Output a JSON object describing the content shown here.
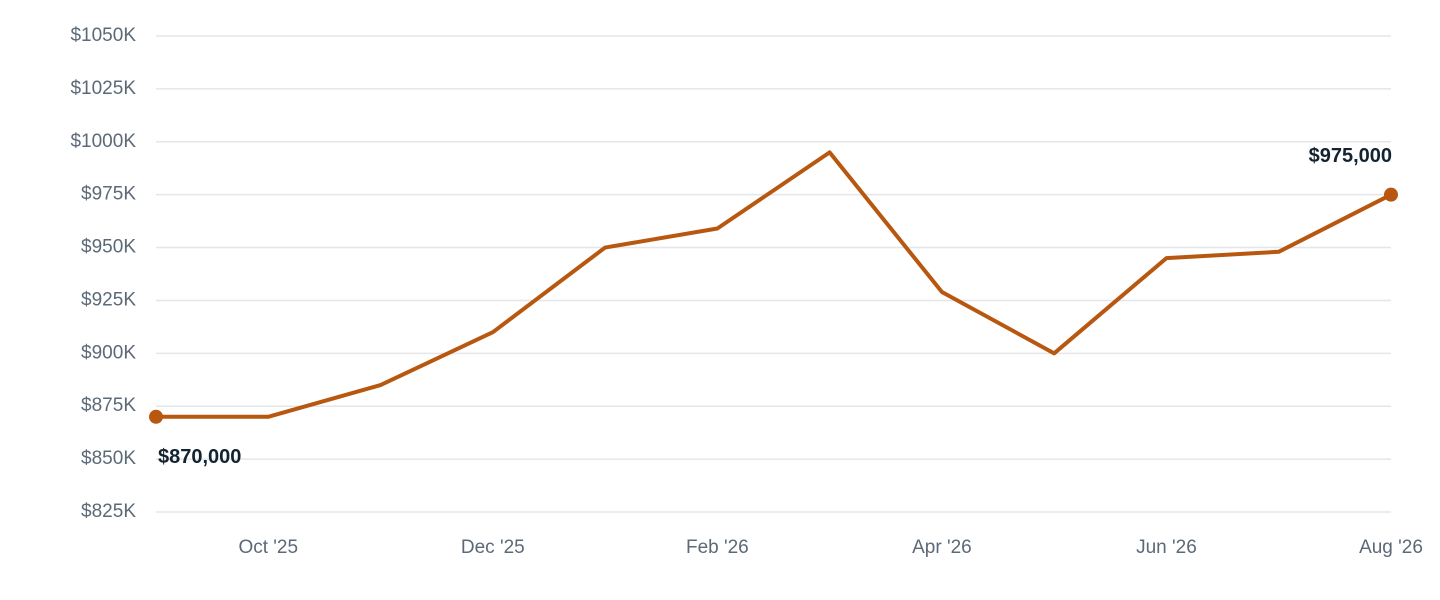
{
  "chart_data": {
    "type": "line",
    "categories": [
      null,
      "Oct '25",
      null,
      "Dec '25",
      null,
      "Feb '26",
      null,
      "Apr '26",
      null,
      "Jun '26",
      null,
      "Aug '26"
    ],
    "values": [
      870000,
      870000,
      885000,
      910000,
      950000,
      959000,
      995000,
      929000,
      900000,
      945000,
      948000,
      975000
    ],
    "value_labels": [
      "$870,000",
      null,
      null,
      null,
      null,
      null,
      null,
      null,
      null,
      null,
      null,
      "$975,000"
    ],
    "color": "#b8570f",
    "ylim": [
      825000,
      1050000
    ],
    "yticks": [
      {
        "value": 825000,
        "label": "$825K"
      },
      {
        "value": 850000,
        "label": "$850K"
      },
      {
        "value": 875000,
        "label": "$875K"
      },
      {
        "value": 900000,
        "label": "$900K"
      },
      {
        "value": 925000,
        "label": "$925K"
      },
      {
        "value": 950000,
        "label": "$950K"
      },
      {
        "value": 975000,
        "label": "$975K"
      },
      {
        "value": 1000000,
        "label": "$1000K"
      },
      {
        "value": 1025000,
        "label": "$1025K"
      },
      {
        "value": 1050000,
        "label": "$1050K"
      }
    ],
    "grid": true
  }
}
